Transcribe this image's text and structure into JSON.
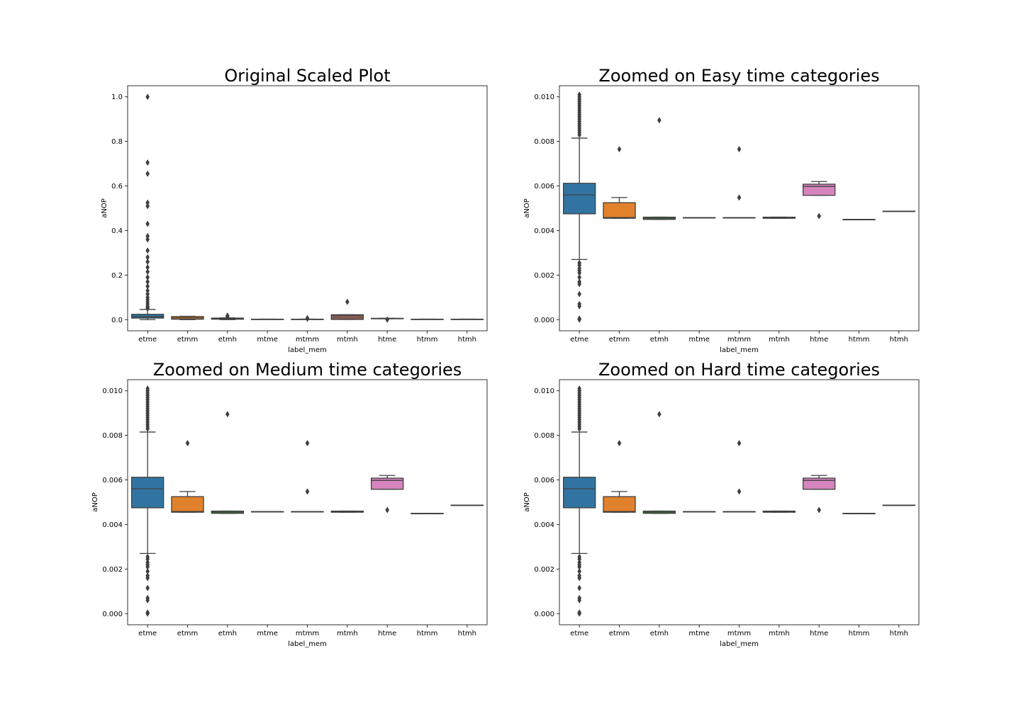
{
  "colors": {
    "etme": "#3274a1",
    "etmm": "#e1812c",
    "etmh": "#3a923a",
    "mtme": "#c03d3e",
    "mtmm": "#9372b2",
    "mtmh": "#845b53",
    "htme": "#d684bd",
    "htmm": "#7f7f7f",
    "htmh": "#a9aa35",
    "edge": "#3f3f3f"
  },
  "chart_data": [
    {
      "type": "box",
      "title": "Original Scaled Plot",
      "xlabel": "label_mem",
      "ylabel": "aNOP",
      "categories": [
        "etme",
        "etmm",
        "etmh",
        "mtme",
        "mtmm",
        "mtmh",
        "htme",
        "htmm",
        "htmh"
      ],
      "ylim": [
        -0.05,
        1.05
      ],
      "yticks": [
        0.0,
        0.2,
        0.4,
        0.6,
        0.8,
        1.0
      ],
      "tick_labels": [
        "0.0",
        "0.2",
        "0.4",
        "0.6",
        "0.8",
        "1.0"
      ],
      "boxes": [
        {
          "q1": 0.007,
          "med": 0.013,
          "q3": 0.024,
          "wlo": 0.0,
          "whi": 0.046,
          "outliers": [
            1.0,
            0.705,
            0.655,
            0.525,
            0.51,
            0.43,
            0.375,
            0.36,
            0.31,
            0.28,
            0.26,
            0.235,
            0.215,
            0.19,
            0.17,
            0.15,
            0.13,
            0.115,
            0.1,
            0.09,
            0.08,
            0.07,
            0.06,
            0.055,
            0.05
          ]
        },
        {
          "q1": 0.002,
          "med": 0.008,
          "q3": 0.014,
          "wlo": 0.0,
          "whi": 0.015,
          "outliers": []
        },
        {
          "q1": 0.002,
          "med": 0.004,
          "q3": 0.007,
          "wlo": 0.0,
          "whi": 0.008,
          "outliers": [
            0.018,
            0.013
          ]
        },
        {
          "q1": 0.0018,
          "med": 0.002,
          "q3": 0.0022,
          "wlo": 0.0018,
          "whi": 0.0022,
          "outliers": []
        },
        {
          "q1": 0.0018,
          "med": 0.002,
          "q3": 0.0022,
          "wlo": 0.0018,
          "whi": 0.0022,
          "outliers": [
            0.007,
            0.004
          ]
        },
        {
          "q1": 0.001,
          "med": 0.02,
          "q3": 0.022,
          "wlo": 0.001,
          "whi": 0.022,
          "outliers": [
            0.08
          ]
        },
        {
          "q1": 0.004,
          "med": 0.005,
          "q3": 0.006,
          "wlo": 0.004,
          "whi": 0.006,
          "outliers": [
            0.0
          ]
        },
        {
          "q1": 0.0018,
          "med": 0.002,
          "q3": 0.0022,
          "wlo": 0.0018,
          "whi": 0.0022,
          "outliers": []
        },
        {
          "q1": 0.0018,
          "med": 0.002,
          "q3": 0.0022,
          "wlo": 0.0018,
          "whi": 0.0022,
          "outliers": []
        }
      ]
    },
    {
      "type": "box",
      "title": "Zoomed on Easy time categories",
      "xlabel": "label_mem",
      "ylabel": "aNOP",
      "categories": [
        "etme",
        "etmm",
        "etmh",
        "mtme",
        "mtmm",
        "mtmh",
        "htme",
        "htmm",
        "htmh"
      ],
      "ylim": [
        -0.0005,
        0.0105
      ],
      "yticks": [
        0.0,
        0.002,
        0.004,
        0.006,
        0.008,
        0.01
      ],
      "tick_labels": [
        "0.000",
        "0.002",
        "0.004",
        "0.006",
        "0.008",
        "0.010"
      ],
      "boxes": [
        {
          "q1": 0.00475,
          "med": 0.0056,
          "q3": 0.00612,
          "wlo": 0.0027,
          "whi": 0.00815,
          "outliers": [
            0.0101,
            0.01,
            0.0099,
            0.0098,
            0.0097,
            0.0096,
            0.0095,
            0.0094,
            0.0093,
            0.0092,
            0.0091,
            0.009,
            0.0089,
            0.0088,
            0.0087,
            0.0086,
            0.0085,
            0.0084,
            0.0083,
            0.00255,
            0.00245,
            0.0023,
            0.0022,
            0.0021,
            0.0019,
            0.0017,
            0.0016,
            0.00115,
            0.0007,
            0.0006,
            5e-05,
            0.0
          ]
        },
        {
          "q1": 0.00455,
          "med": 0.00458,
          "q3": 0.00525,
          "wlo": 0.00455,
          "whi": 0.00548,
          "outliers": [
            0.00765
          ]
        },
        {
          "q1": 0.0045,
          "med": 0.00455,
          "q3": 0.0046,
          "wlo": 0.0045,
          "whi": 0.0046,
          "outliers": [
            0.00895
          ]
        },
        {
          "q1": 0.00458,
          "med": 0.00458,
          "q3": 0.00458,
          "wlo": 0.00458,
          "whi": 0.00458,
          "outliers": []
        },
        {
          "q1": 0.00458,
          "med": 0.00458,
          "q3": 0.00458,
          "wlo": 0.00458,
          "whi": 0.00458,
          "outliers": [
            0.00765,
            0.00548
          ]
        },
        {
          "q1": 0.00455,
          "med": 0.00458,
          "q3": 0.0046,
          "wlo": 0.00455,
          "whi": 0.0046,
          "outliers": []
        },
        {
          "q1": 0.00558,
          "med": 0.00598,
          "q3": 0.00608,
          "wlo": 0.00558,
          "whi": 0.0062,
          "outliers": [
            0.00465
          ]
        },
        {
          "q1": 0.0045,
          "med": 0.0045,
          "q3": 0.0045,
          "wlo": 0.0045,
          "whi": 0.0045,
          "outliers": []
        },
        {
          "q1": 0.00487,
          "med": 0.00487,
          "q3": 0.00487,
          "wlo": 0.00487,
          "whi": 0.00487,
          "outliers": []
        }
      ]
    },
    {
      "type": "box",
      "title": "Zoomed on Medium time categories",
      "xlabel": "label_mem",
      "ylabel": "aNOP",
      "categories": [
        "etme",
        "etmm",
        "etmh",
        "mtme",
        "mtmm",
        "mtmh",
        "htme",
        "htmm",
        "htmh"
      ],
      "ylim": [
        -0.0005,
        0.0105
      ],
      "yticks": [
        0.0,
        0.002,
        0.004,
        0.006,
        0.008,
        0.01
      ],
      "tick_labels": [
        "0.000",
        "0.002",
        "0.004",
        "0.006",
        "0.008",
        "0.010"
      ],
      "boxes": [
        {
          "q1": 0.00475,
          "med": 0.0056,
          "q3": 0.00612,
          "wlo": 0.0027,
          "whi": 0.00815,
          "outliers": [
            0.0101,
            0.01,
            0.0099,
            0.0098,
            0.0097,
            0.0096,
            0.0095,
            0.0094,
            0.0093,
            0.0092,
            0.0091,
            0.009,
            0.0089,
            0.0088,
            0.0087,
            0.0086,
            0.0085,
            0.0084,
            0.0083,
            0.00255,
            0.00245,
            0.0023,
            0.0022,
            0.0021,
            0.0019,
            0.0017,
            0.0016,
            0.00115,
            0.0007,
            0.0006,
            5e-05,
            0.0
          ]
        },
        {
          "q1": 0.00455,
          "med": 0.00458,
          "q3": 0.00525,
          "wlo": 0.00455,
          "whi": 0.00548,
          "outliers": [
            0.00765
          ]
        },
        {
          "q1": 0.0045,
          "med": 0.00455,
          "q3": 0.0046,
          "wlo": 0.0045,
          "whi": 0.0046,
          "outliers": [
            0.00895
          ]
        },
        {
          "q1": 0.00458,
          "med": 0.00458,
          "q3": 0.00458,
          "wlo": 0.00458,
          "whi": 0.00458,
          "outliers": []
        },
        {
          "q1": 0.00458,
          "med": 0.00458,
          "q3": 0.00458,
          "wlo": 0.00458,
          "whi": 0.00458,
          "outliers": [
            0.00765,
            0.00548
          ]
        },
        {
          "q1": 0.00455,
          "med": 0.00458,
          "q3": 0.0046,
          "wlo": 0.00455,
          "whi": 0.0046,
          "outliers": []
        },
        {
          "q1": 0.00558,
          "med": 0.00598,
          "q3": 0.00608,
          "wlo": 0.00558,
          "whi": 0.0062,
          "outliers": [
            0.00465
          ]
        },
        {
          "q1": 0.0045,
          "med": 0.0045,
          "q3": 0.0045,
          "wlo": 0.0045,
          "whi": 0.0045,
          "outliers": []
        },
        {
          "q1": 0.00487,
          "med": 0.00487,
          "q3": 0.00487,
          "wlo": 0.00487,
          "whi": 0.00487,
          "outliers": []
        }
      ]
    },
    {
      "type": "box",
      "title": "Zoomed on Hard time categories",
      "xlabel": "label_mem",
      "ylabel": "aNOP",
      "categories": [
        "etme",
        "etmm",
        "etmh",
        "mtme",
        "mtmm",
        "mtmh",
        "htme",
        "htmm",
        "htmh"
      ],
      "ylim": [
        -0.0005,
        0.0105
      ],
      "yticks": [
        0.0,
        0.002,
        0.004,
        0.006,
        0.008,
        0.01
      ],
      "tick_labels": [
        "0.000",
        "0.002",
        "0.004",
        "0.006",
        "0.008",
        "0.010"
      ],
      "boxes": [
        {
          "q1": 0.00475,
          "med": 0.0056,
          "q3": 0.00612,
          "wlo": 0.0027,
          "whi": 0.00815,
          "outliers": [
            0.0101,
            0.01,
            0.0099,
            0.0098,
            0.0097,
            0.0096,
            0.0095,
            0.0094,
            0.0093,
            0.0092,
            0.0091,
            0.009,
            0.0089,
            0.0088,
            0.0087,
            0.0086,
            0.0085,
            0.0084,
            0.0083,
            0.00255,
            0.00245,
            0.0023,
            0.0022,
            0.0021,
            0.0019,
            0.0017,
            0.0016,
            0.00115,
            0.0007,
            0.0006,
            5e-05,
            0.0
          ]
        },
        {
          "q1": 0.00455,
          "med": 0.00458,
          "q3": 0.00525,
          "wlo": 0.00455,
          "whi": 0.00548,
          "outliers": [
            0.00765
          ]
        },
        {
          "q1": 0.0045,
          "med": 0.00455,
          "q3": 0.0046,
          "wlo": 0.0045,
          "whi": 0.0046,
          "outliers": [
            0.00895
          ]
        },
        {
          "q1": 0.00458,
          "med": 0.00458,
          "q3": 0.00458,
          "wlo": 0.00458,
          "whi": 0.00458,
          "outliers": []
        },
        {
          "q1": 0.00458,
          "med": 0.00458,
          "q3": 0.00458,
          "wlo": 0.00458,
          "whi": 0.00458,
          "outliers": [
            0.00765,
            0.00548
          ]
        },
        {
          "q1": 0.00455,
          "med": 0.00458,
          "q3": 0.0046,
          "wlo": 0.00455,
          "whi": 0.0046,
          "outliers": []
        },
        {
          "q1": 0.00558,
          "med": 0.00598,
          "q3": 0.00608,
          "wlo": 0.00558,
          "whi": 0.0062,
          "outliers": [
            0.00465
          ]
        },
        {
          "q1": 0.0045,
          "med": 0.0045,
          "q3": 0.0045,
          "wlo": 0.0045,
          "whi": 0.0045,
          "outliers": []
        },
        {
          "q1": 0.00487,
          "med": 0.00487,
          "q3": 0.00487,
          "wlo": 0.00487,
          "whi": 0.00487,
          "outliers": []
        }
      ]
    }
  ]
}
